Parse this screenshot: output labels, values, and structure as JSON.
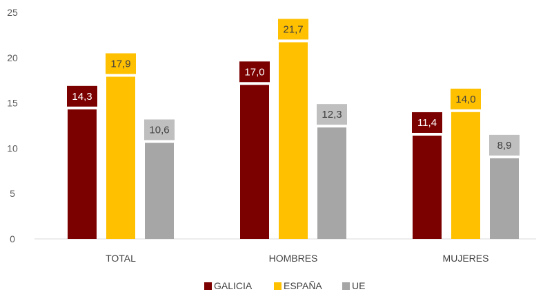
{
  "chart_data": {
    "type": "bar",
    "categories": [
      "TOTAL",
      "HOMBRES",
      "MUJERES"
    ],
    "series": [
      {
        "name": "GALICIA",
        "color": "#7b0000",
        "values": [
          14.3,
          17.0,
          11.4
        ],
        "labels": [
          "14,3",
          "17,0",
          "11,4"
        ]
      },
      {
        "name": "ESPAÑA",
        "color": "#ffc000",
        "values": [
          17.9,
          21.7,
          14.0
        ],
        "labels": [
          "17,9",
          "21,7",
          "14,0"
        ]
      },
      {
        "name": "UE",
        "color": "#a6a6a6",
        "values": [
          10.6,
          12.3,
          8.9
        ],
        "labels": [
          "10,6",
          "12,3",
          "8,9"
        ]
      }
    ],
    "yticks": [
      "0",
      "5",
      "10",
      "15",
      "20",
      "25"
    ],
    "ylim": [
      0,
      25
    ],
    "legend_position": "bottom",
    "grid": false
  }
}
